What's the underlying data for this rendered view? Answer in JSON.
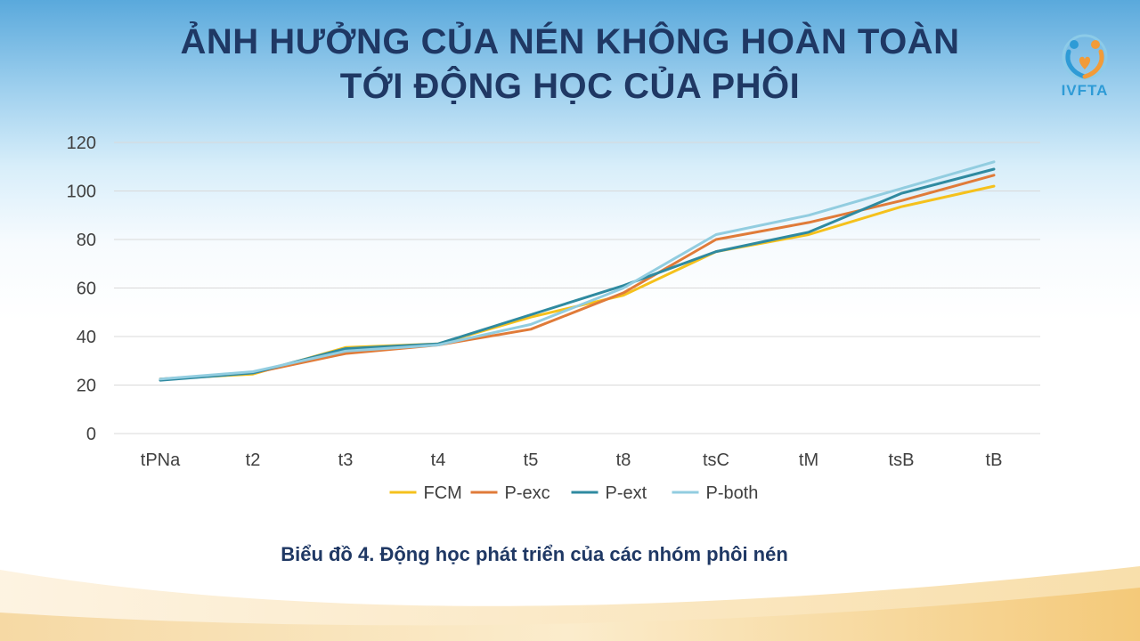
{
  "slide": {
    "title_line1": "ẢNH HƯỞNG CỦA NÉN KHÔNG HOÀN TOÀN",
    "title_line2": "TỚI ĐỘNG HỌC CỦA PHÔI",
    "logo_text": "IVFTA",
    "caption": "Biểu đồ 4. Động học phát triển của các nhóm phôi nén"
  },
  "chart_data": {
    "type": "line",
    "categories": [
      "tPNa",
      "t2",
      "t3",
      "t4",
      "t5",
      "t8",
      "tsC",
      "tM",
      "tsB",
      "tB"
    ],
    "ylim": [
      0,
      120
    ],
    "yticks": [
      0,
      20,
      40,
      60,
      80,
      100,
      120
    ],
    "grid": true,
    "legend_position": "bottom",
    "series": [
      {
        "name": "FCM",
        "color": "#f5c11c",
        "values": [
          22.5,
          24.5,
          35.5,
          37,
          48,
          57,
          75,
          82,
          93.5,
          102
        ]
      },
      {
        "name": "P-exc",
        "color": "#e07b39",
        "values": [
          22.5,
          25,
          33,
          36.5,
          43,
          58,
          80,
          87,
          96,
          106.5
        ]
      },
      {
        "name": "P-ext",
        "color": "#2f8aa0",
        "values": [
          22,
          25,
          35,
          37,
          49,
          61,
          75,
          83,
          99,
          109
        ]
      },
      {
        "name": "P-both",
        "color": "#92cde0",
        "values": [
          22.5,
          25.5,
          34,
          36.5,
          45,
          60,
          82,
          90,
          101,
          112
        ]
      }
    ]
  }
}
